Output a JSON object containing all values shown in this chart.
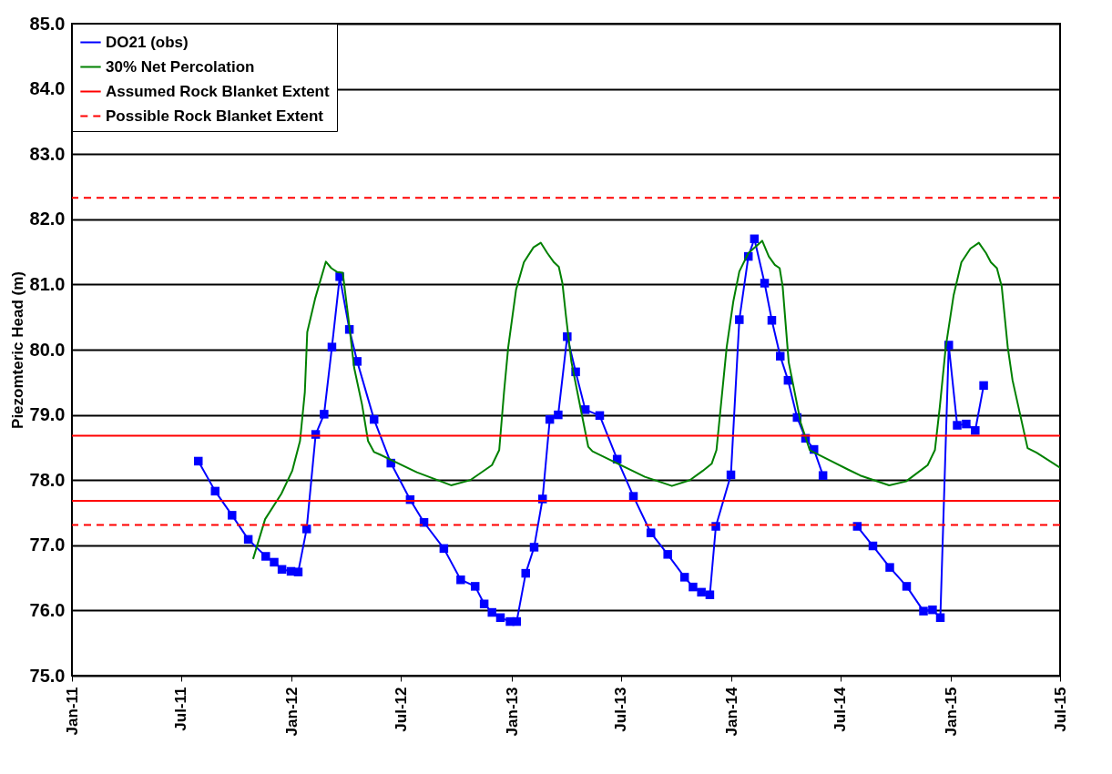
{
  "chart_data": {
    "type": "line",
    "ylabel": "Piezomteric Head (m)",
    "legend": "top left",
    "grid": "y",
    "xlim": [
      "2011-01",
      "2015-07"
    ],
    "xticks": [
      {
        "value": "2011-01",
        "label": "Jan-11"
      },
      {
        "value": "2011-07",
        "label": "Jul-11"
      },
      {
        "value": "2012-01",
        "label": "Jan-12"
      },
      {
        "value": "2012-07",
        "label": "Jul-12"
      },
      {
        "value": "2013-01",
        "label": "Jan-13"
      },
      {
        "value": "2013-07",
        "label": "Jul-13"
      },
      {
        "value": "2014-01",
        "label": "Jan-14"
      },
      {
        "value": "2014-07",
        "label": "Jul-14"
      },
      {
        "value": "2015-01",
        "label": "Jan-15"
      },
      {
        "value": "2015-07",
        "label": "Jul-15"
      }
    ],
    "ylim": [
      75,
      85
    ],
    "yticks": [
      {
        "value": 75,
        "label": "75.0"
      },
      {
        "value": 76,
        "label": "76.0"
      },
      {
        "value": 77,
        "label": "77.0"
      },
      {
        "value": 78,
        "label": "78.0"
      },
      {
        "value": 79,
        "label": "79.0"
      },
      {
        "value": 80,
        "label": "80.0"
      },
      {
        "value": 81,
        "label": "81.0"
      },
      {
        "value": 82,
        "label": "82.0"
      },
      {
        "value": 83,
        "label": "83.0"
      },
      {
        "value": 84,
        "label": "84.0"
      },
      {
        "value": 85,
        "label": "85.0"
      }
    ],
    "series": [
      {
        "name": "DO21 (obs)",
        "color": "#0000ff",
        "marker": "square",
        "line_style": "solid",
        "x": [
          "2011-07-30",
          "2011-08-27",
          "2011-09-24",
          "2011-10-21",
          "2011-11-19",
          "2011-12-03",
          "2011-12-16",
          "2011-12-31",
          "2012-01-12",
          "2012-01-26",
          "2012-02-10",
          "2012-02-24",
          "2012-03-08",
          "2012-03-21",
          "2012-04-06",
          "2012-04-19",
          "2012-05-17",
          "2012-06-14",
          "2012-07-16",
          "2012-08-08",
          "2012-09-10",
          "2012-10-08",
          "2012-11-01",
          "2012-11-16",
          "2012-11-29",
          "2012-12-13",
          "2012-12-29",
          "2013-01-09",
          "2013-01-24",
          "2013-02-07",
          "2013-02-21",
          "2013-03-05",
          "2013-03-19",
          "2013-04-03",
          "2013-04-17",
          "2013-05-03",
          "2013-05-27",
          "2013-06-25",
          "2013-07-22",
          "2013-08-20",
          "2013-09-17",
          "2013-10-15",
          "2013-10-29",
          "2013-11-12",
          "2013-11-26",
          "2013-12-06",
          "2013-12-31",
          "2014-01-14",
          "2014-01-29",
          "2014-02-08",
          "2014-02-25",
          "2014-03-09",
          "2014-03-23",
          "2014-04-05",
          "2014-04-20",
          "2014-05-04",
          "2014-05-18",
          "2014-06-02",
          "2014-07-01",
          "2014-07-29",
          "2014-08-24",
          "2014-09-21",
          "2014-10-19",
          "2014-11-16",
          "2014-12-01",
          "2014-12-14",
          "2014-12-28",
          "2015-01-11",
          "2015-01-26",
          "2015-02-10",
          "2015-02-24"
        ],
        "values": [
          78.29,
          77.83,
          77.46,
          77.09,
          76.83,
          76.74,
          76.63,
          76.6,
          76.59,
          77.25,
          78.7,
          79.01,
          80.04,
          81.12,
          80.31,
          79.82,
          78.93,
          78.26,
          77.7,
          77.35,
          76.95,
          76.47,
          76.37,
          76.1,
          75.97,
          75.89,
          75.83,
          75.83,
          76.57,
          76.97,
          77.71,
          78.93,
          79.0,
          80.2,
          79.66,
          79.08,
          78.99,
          78.32,
          77.75,
          77.19,
          76.86,
          76.51,
          76.36,
          76.28,
          76.24,
          77.29,
          78.08,
          80.46,
          81.43,
          81.7,
          81.02,
          80.45,
          79.9,
          79.53,
          78.96,
          78.64,
          78.47,
          78.07,
          null,
          77.29,
          76.99,
          76.66,
          76.37,
          75.99,
          76.01,
          75.89,
          80.07,
          78.84,
          78.86,
          78.76,
          79.45
        ]
      },
      {
        "name": "30% Net Percolation",
        "color": "#008000",
        "line_style": "solid",
        "x": [
          "2011-10-29",
          "2011-11-18",
          "2011-12-15",
          "2012-01-02",
          "2012-01-15",
          "2012-01-23",
          "2012-01-27",
          "2012-02-09",
          "2012-02-27",
          "2012-03-07",
          "2012-03-17",
          "2012-03-26",
          "2012-04-04",
          "2012-04-14",
          "2012-04-27",
          "2012-05-07",
          "2012-05-17",
          "2012-05-27",
          "2012-07-27",
          "2012-09-22",
          "2012-10-24",
          "2012-11-29",
          "2012-12-11",
          "2012-12-19",
          "2012-12-26",
          "2013-01-08",
          "2013-01-21",
          "2013-02-06",
          "2013-02-18",
          "2013-03-01",
          "2013-03-12",
          "2013-03-20",
          "2013-03-26",
          "2013-04-01",
          "2013-04-10",
          "2013-04-25",
          "2013-05-08",
          "2013-05-15",
          "2013-08-10",
          "2013-09-24",
          "2013-10-24",
          "2013-11-14",
          "2013-11-29",
          "2013-12-07",
          "2013-12-14",
          "2013-12-24",
          "2014-01-04",
          "2014-01-14",
          "2014-01-29",
          "2014-02-21",
          "2014-03-04",
          "2014-03-14",
          "2014-03-22",
          "2014-03-27",
          "2014-04-06",
          "2014-04-26",
          "2014-05-11",
          "2014-05-19",
          "2014-07-14",
          "2014-08-03",
          "2014-09-20",
          "2014-10-18",
          "2014-11-23",
          "2014-12-05",
          "2014-12-13",
          "2014-12-23",
          "2015-01-05",
          "2015-01-18",
          "2015-02-02",
          "2015-02-16",
          "2015-02-28",
          "2015-03-08",
          "2015-03-18",
          "2015-03-26",
          "2015-04-05",
          "2015-04-13",
          "2015-05-08",
          "2015-05-23",
          "2015-07-01"
        ],
        "values": [
          76.79,
          77.4,
          77.79,
          78.14,
          78.6,
          79.35,
          80.27,
          80.78,
          81.35,
          81.25,
          81.19,
          81.18,
          80.51,
          79.72,
          79.16,
          78.6,
          78.43,
          78.39,
          78.12,
          77.92,
          78.0,
          78.23,
          78.46,
          79.35,
          80.04,
          80.92,
          81.34,
          81.57,
          81.64,
          81.48,
          81.34,
          81.27,
          81.02,
          80.51,
          79.81,
          79.11,
          78.51,
          78.44,
          78.05,
          77.91,
          78.0,
          78.14,
          78.25,
          78.46,
          79.11,
          80.04,
          80.74,
          81.2,
          81.48,
          81.67,
          81.43,
          81.3,
          81.25,
          80.97,
          79.81,
          78.88,
          78.46,
          78.42,
          78.16,
          78.07,
          77.92,
          77.98,
          78.23,
          78.46,
          79.11,
          80.04,
          80.83,
          81.34,
          81.55,
          81.64,
          81.48,
          81.34,
          81.25,
          80.97,
          80.04,
          79.53,
          78.49,
          78.42,
          78.19
        ]
      }
    ],
    "ref_lines": [
      {
        "axis": "y",
        "value": 78.68,
        "label": "Assumed Rock Blanket Extent",
        "color": "#ff0000",
        "line_style": "solid"
      },
      {
        "axis": "y",
        "value": 77.68,
        "color": "#ff0000",
        "line_style": "solid"
      },
      {
        "axis": "y",
        "value": 82.33,
        "label": "Possible Rock Blanket Extent",
        "color": "#ff0000",
        "line_style": "dashed"
      },
      {
        "axis": "y",
        "value": 77.31,
        "color": "#ff0000",
        "line_style": "dashed"
      }
    ]
  }
}
